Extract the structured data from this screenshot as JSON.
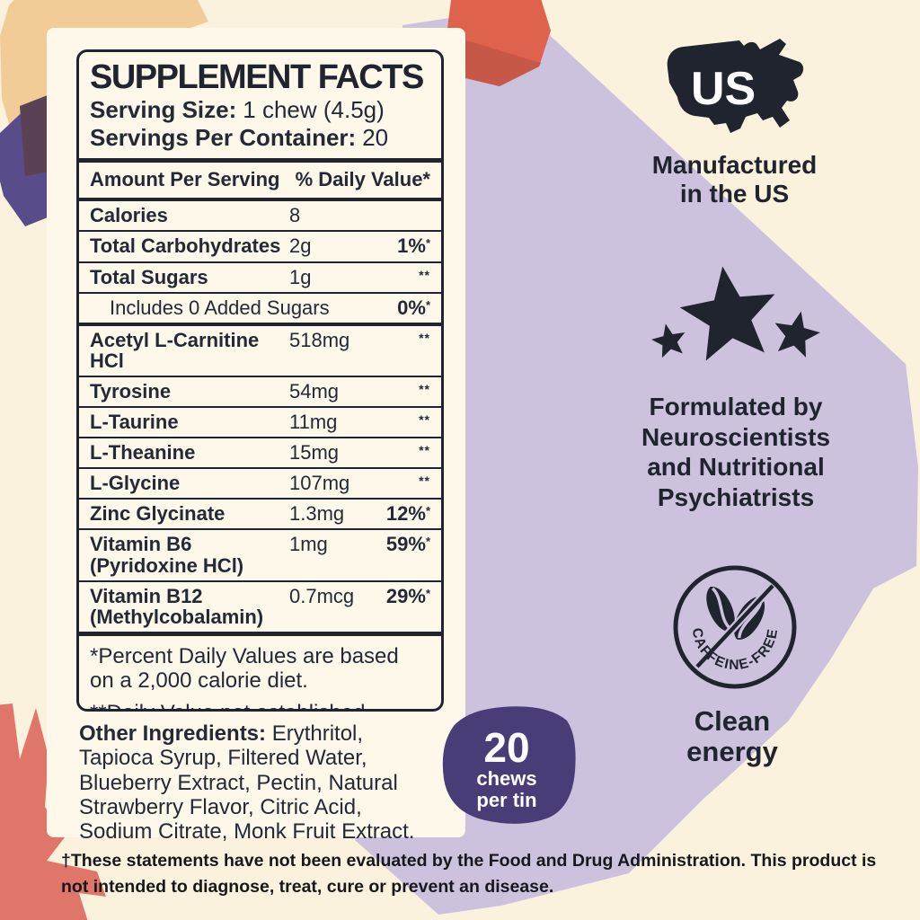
{
  "colors": {
    "background": "#fbf2de",
    "card": "#fdf8ea",
    "ink": "#20242e",
    "lavender": "#ccc2dd",
    "tin_badge_purple": "#4a3d77",
    "tan": "#f2cc96",
    "slate_purple": "#584c8b",
    "plum": "#5b4154",
    "red": "#df624c",
    "red_dark": "#c75848",
    "coral": "#e0766a"
  },
  "facts": {
    "title": "SUPPLEMENT FACTS",
    "serving_size_label": "Serving Size:",
    "serving_size_value": "1 chew (4.5g)",
    "servings_per_container_label": "Servings Per Container:",
    "servings_per_container_value": "20",
    "columns": {
      "amount": "Amount Per Serving",
      "daily_value": "% Daily Value*"
    },
    "rows": [
      {
        "name": "Calories",
        "amount": "8",
        "dv": ""
      },
      {
        "name": "Total Carbohydrates",
        "amount": "2g",
        "dv": "1%*"
      },
      {
        "name": "Total Sugars",
        "amount": "1g",
        "dv": "**"
      },
      {
        "name": "Includes 0 Added Sugars",
        "amount": "",
        "dv": "0%*",
        "indent": true
      },
      {
        "name": "Acetyl L-Carnitine\nHCl",
        "amount": "518mg",
        "dv": "**",
        "thick_top": true
      },
      {
        "name": "Tyrosine",
        "amount": "54mg",
        "dv": "**"
      },
      {
        "name": "L-Taurine",
        "amount": "11mg",
        "dv": "**"
      },
      {
        "name": "L-Theanine",
        "amount": "15mg",
        "dv": "**"
      },
      {
        "name": "L-Glycine",
        "amount": "107mg",
        "dv": "**"
      },
      {
        "name": "Zinc Glycinate",
        "amount": "1.3mg",
        "dv": "12%*"
      },
      {
        "name": "Vitamin B6\n(Pyridoxine HCl)",
        "amount": "1mg",
        "dv": "59%*"
      },
      {
        "name": "Vitamin B12\n(Methylcobalamin)",
        "amount": "0.7mcg",
        "dv": "29%*"
      }
    ],
    "footnote_1": "*Percent Daily Values are based\non a 2,000 calorie diet.",
    "footnote_2": "**Daily Value not established."
  },
  "other_ingredients": {
    "label": "Other Ingredients:",
    "value": "Erythritol, Tapioca Syrup, Filtered Water, Blueberry Extract, Pectin, Natural Strawberry Flavor, Citric Acid, Sodium Citrate, Monk Fruit Extract."
  },
  "tin_badge": {
    "number": "20",
    "unit_line1": "chews",
    "unit_line2": "per tin"
  },
  "made_in_us": {
    "icon_label": "US",
    "caption": "Manufactured\nin the US"
  },
  "formulated": {
    "caption": "Formulated by\nNeuroscientists\nand Nutritional\nPsychiatrists"
  },
  "caffeine_free": {
    "badge_text": "CAFFEINE-FREE",
    "caption": "Clean\nenergy"
  },
  "disclaimer": "†These statements have not been evaluated by the Food and Drug Administration. This product is not intended to diagnose, treat, cure or prevent an disease."
}
